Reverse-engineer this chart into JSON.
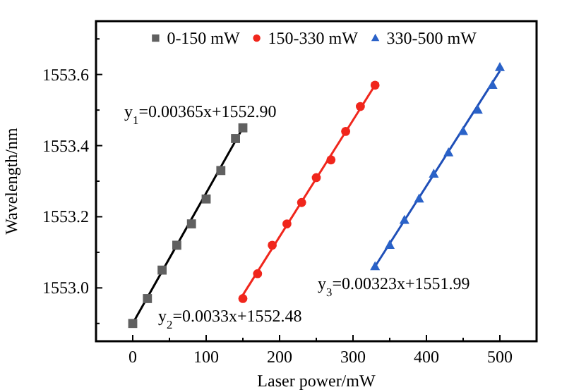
{
  "chart_data": {
    "type": "scatter",
    "xlabel": "Laser power/mW",
    "ylabel": "Wavelength/nm",
    "xlim": [
      -50,
      550
    ],
    "ylim": [
      1552.85,
      1553.75
    ],
    "xticks": [
      0,
      {
        "value": 50,
        "label": null
      },
      100,
      {
        "value": 150,
        "label": null
      },
      200,
      {
        "value": 250,
        "label": null
      },
      300,
      {
        "value": 350,
        "label": null
      },
      400,
      {
        "value": 450,
        "label": null
      },
      500
    ],
    "yticks": [
      {
        "value": 1552.9,
        "label": null
      },
      {
        "value": 1553.0,
        "label": "1553.0"
      },
      {
        "value": 1553.1,
        "label": null
      },
      {
        "value": 1553.2,
        "label": "1553.2"
      },
      {
        "value": 1553.3,
        "label": null
      },
      {
        "value": 1553.4,
        "label": "1553.4"
      },
      {
        "value": 1553.5,
        "label": null
      },
      {
        "value": 1553.6,
        "label": "1553.6"
      },
      {
        "value": 1553.7,
        "label": null
      }
    ],
    "legend": "top",
    "grid": false,
    "series": [
      {
        "name": "0-150 mW",
        "color": "#606060",
        "marker": "square",
        "x": [
          0,
          20,
          40,
          60,
          80,
          100,
          120,
          140,
          150
        ],
        "values": [
          1552.9,
          1552.97,
          1553.05,
          1553.12,
          1553.18,
          1553.25,
          1553.33,
          1553.42,
          1553.45
        ]
      },
      {
        "name": "150-330 mW",
        "color": "#f0261c",
        "marker": "circle",
        "x": [
          150,
          170,
          190,
          210,
          230,
          250,
          270,
          290,
          310,
          330
        ],
        "values": [
          1552.97,
          1553.04,
          1553.12,
          1553.18,
          1553.24,
          1553.31,
          1553.36,
          1553.44,
          1553.51,
          1553.57
        ]
      },
      {
        "name": "330-500 mW",
        "color": "#2a62c8",
        "marker": "triangle",
        "x": [
          330,
          350,
          370,
          390,
          410,
          430,
          450,
          470,
          490,
          500
        ],
        "values": [
          1553.06,
          1553.12,
          1553.19,
          1553.25,
          1553.32,
          1553.38,
          1553.44,
          1553.5,
          1553.57,
          1553.62
        ]
      },
      {
        "type": "line",
        "color": "#000000",
        "x": [
          0,
          150
        ],
        "values": [
          1552.9,
          1553.45
        ]
      },
      {
        "type": "line",
        "color": "#f0261c",
        "x": [
          150,
          330
        ],
        "values": [
          1552.98,
          1553.57
        ]
      },
      {
        "type": "line",
        "color": "#1f4fb8",
        "x": [
          330,
          500
        ],
        "values": [
          1553.06,
          1553.61
        ]
      }
    ],
    "annotations": [
      "y$_{1}$=0.00365x+1552.90",
      "y$_{2}$=0.0033x+1552.48",
      "y$_{3}$=0.00323x+1551.99"
    ]
  }
}
